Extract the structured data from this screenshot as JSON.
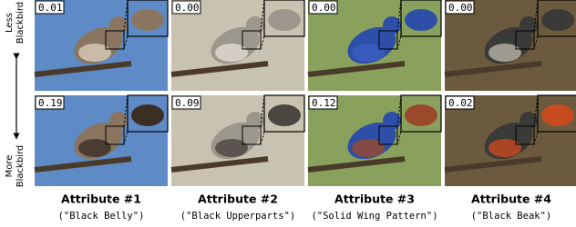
{
  "row_labels": [
    [
      "Less",
      "Blackbird"
    ],
    [
      "More",
      "Blackbird"
    ]
  ],
  "columns": [
    {
      "title": "Attribute #1",
      "subtitle": "(\"Black Belly\")",
      "scores": [
        "0.01",
        "0.19"
      ]
    },
    {
      "title": "Attribute #2",
      "subtitle": "(\"Black Upperparts\")",
      "scores": [
        "0.00",
        "0.09"
      ]
    },
    {
      "title": "Attribute #3",
      "subtitle": "(\"Solid Wing Pattern\")",
      "scores": [
        "0.00",
        "0.12"
      ]
    },
    {
      "title": "Attribute #4",
      "subtitle": "(\"Black Beak\")",
      "scores": [
        "0.00",
        "0.02"
      ]
    }
  ]
}
